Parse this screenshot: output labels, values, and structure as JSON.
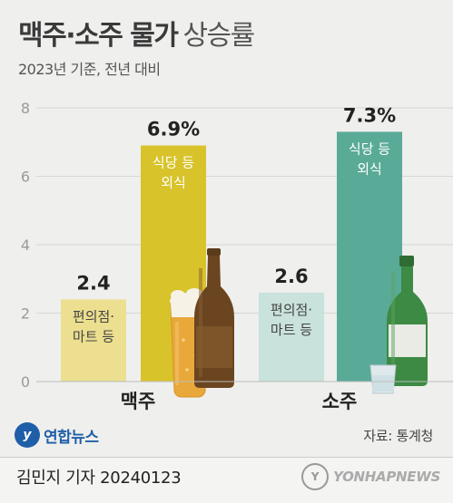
{
  "header": {
    "title_bold": "맥주·소주 물가",
    "title_light": "상승률",
    "subtitle": "2023년 기준, 전년 대비"
  },
  "chart_data": {
    "type": "bar",
    "categories": [
      "맥주",
      "소주"
    ],
    "series": [
      {
        "key": "store",
        "values": [
          2.4,
          2.6
        ],
        "labels": [
          "2.4",
          "2.6"
        ],
        "bar_text": [
          "편의점·",
          "마트 등"
        ],
        "color": "#ecdf8f"
      },
      {
        "key": "dining",
        "values": [
          6.9,
          7.3
        ],
        "labels": [
          "6.9%",
          "7.3%"
        ],
        "bar_text": [
          "식당 등",
          "외식"
        ],
        "color_by_category": [
          "#d8c32a",
          "#5aaa98"
        ]
      }
    ],
    "store_colors": [
      "#ecdf8f",
      "#c9e2db"
    ],
    "ylim": [
      0,
      8
    ],
    "yticks": [
      0,
      2,
      4,
      6,
      8
    ],
    "grid": true
  },
  "footer": {
    "logo_text": "연합뉴스",
    "logo_mark": "y",
    "source": "자료: 통계청",
    "author": "김민지 기자  20240123",
    "watermark": "YONHAPNEWS",
    "watermark_mark": "Y"
  },
  "icons": [
    "beer-glass-icon",
    "beer-bottle-icon",
    "soju-bottle-icon",
    "soju-shot-glass-icon"
  ]
}
